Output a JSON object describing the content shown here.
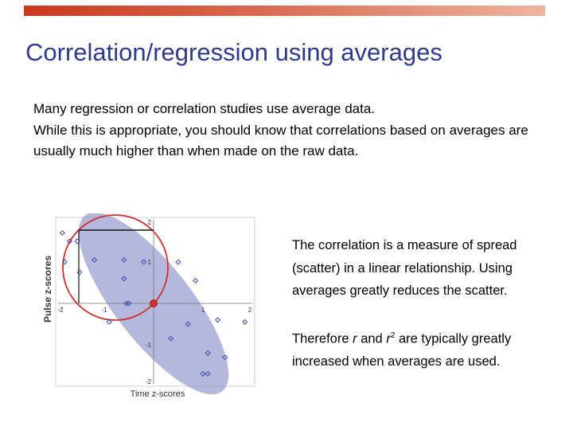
{
  "header": {
    "accent_color": "#c8391f"
  },
  "title": "Correlation/regression using averages",
  "intro": {
    "line1": "Many regression or correlation studies use average data.",
    "line2": "While this is appropriate, you should know that correlations based on averages are usually much higher than when made on the raw data."
  },
  "figure": {
    "x_label": "Time z-scores",
    "y_label": "Pulse z-scores",
    "x_ticks": [
      "-2",
      "-1",
      "1",
      "2"
    ],
    "y_ticks": [
      "2",
      "1",
      "-1",
      "-2"
    ],
    "ellipse_color": "#9aa0d0",
    "circle_color": "#d03030",
    "point_color": "#3a46b0",
    "points": [
      {
        "x": -1.85,
        "y": 1.7
      },
      {
        "x": -1.7,
        "y": 1.5
      },
      {
        "x": -1.55,
        "y": 1.5
      },
      {
        "x": -1.8,
        "y": 1.0
      },
      {
        "x": -1.5,
        "y": 0.75
      },
      {
        "x": -1.2,
        "y": 1.05
      },
      {
        "x": -0.6,
        "y": 1.05
      },
      {
        "x": -0.6,
        "y": 0.6
      },
      {
        "x": -0.55,
        "y": 0.0
      },
      {
        "x": -0.5,
        "y": 0.0
      },
      {
        "x": -0.9,
        "y": -0.45
      },
      {
        "x": 0.5,
        "y": 1.0
      },
      {
        "x": 0.85,
        "y": 0.55
      },
      {
        "x": 0.7,
        "y": -0.5
      },
      {
        "x": 0.35,
        "y": -0.85
      },
      {
        "x": 1.3,
        "y": -0.4
      },
      {
        "x": 1.85,
        "y": -0.45
      },
      {
        "x": 1.1,
        "y": -1.2
      },
      {
        "x": 1.0,
        "y": -1.7
      },
      {
        "x": 1.1,
        "y": -1.7
      },
      {
        "x": 1.45,
        "y": -1.3
      },
      {
        "x": -0.2,
        "y": 1.0
      }
    ],
    "mean_point": {
      "x": 0,
      "y": 0
    }
  },
  "side": {
    "para1": "The correlation is a measure of spread (scatter) in a linear relationship. Using averages greatly reduces the scatter.",
    "para2_a": "Therefore ",
    "para2_r": "r",
    "para2_and": " and ",
    "para2_r2": "r",
    "para2_sup": "2",
    "para2_b": " are typically greatly increased when averages are used."
  }
}
